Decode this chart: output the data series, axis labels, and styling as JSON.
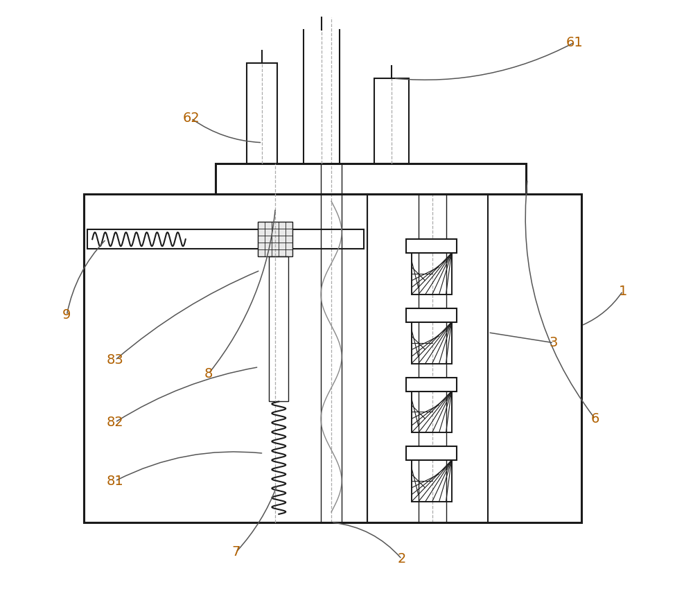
{
  "bg_color": "#ffffff",
  "line_color": "#1a1a1a",
  "label_color": "#b06000",
  "lw_main": 2.2,
  "lw_med": 1.5,
  "lw_thin": 1.0,
  "label_fontsize": 14,
  "figsize": [
    10.0,
    8.5
  ],
  "dpi": 100
}
